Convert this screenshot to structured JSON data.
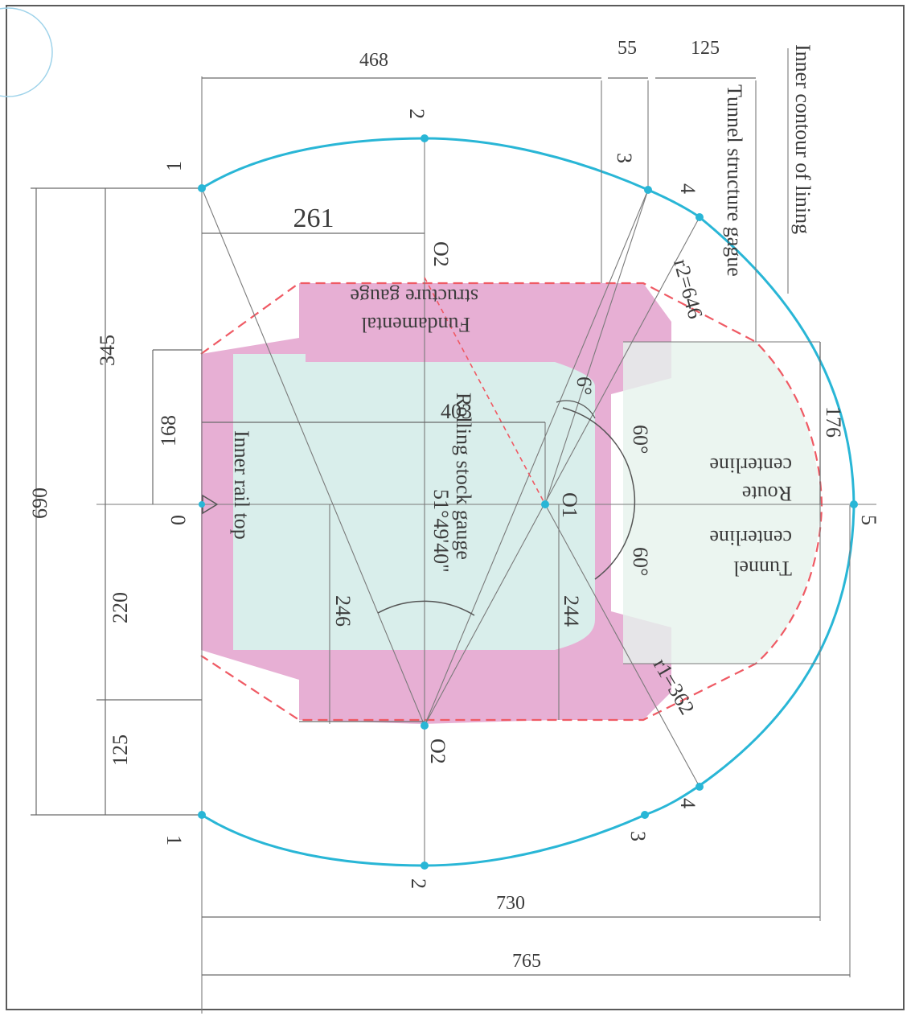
{
  "labels": {
    "inner_contour": "Inner contour of lining",
    "tunnel_structure_gauge": "Tunnel structure gague",
    "fundamental_line1": "Fundamental",
    "fundamental_line2": "structure gauge",
    "rolling_stock_line1": "Rolling stock gauge",
    "rolling_stock_line2": "51°49'40\"",
    "route_line1": "Route",
    "route_line2": "centerline",
    "tunnel_line1": "Tunnel",
    "tunnel_line2": "centerline",
    "inner_rail_top": "Inner rail top"
  },
  "dimensions": {
    "d468": "468",
    "d55": "55",
    "d125": "125",
    "d261": "261",
    "d345": "345",
    "d168": "168",
    "d690": "690",
    "d220": "220",
    "d125b": "125",
    "d403": "403",
    "d246": "246",
    "d244": "244",
    "d176": "176",
    "d730": "730",
    "d765": "765",
    "r1": "r1=362",
    "r2": "r2=646",
    "a6": "6°",
    "a60a": "60°",
    "a60b": "60°"
  },
  "points": {
    "p1_top": "1",
    "p2_top": "2",
    "p3_top": "3",
    "p4_top": "4",
    "p5": "5",
    "p1_bot": "1",
    "p2_bot": "2",
    "p3_bot": "3",
    "p4_bot": "4",
    "p0": "0",
    "o1": "O1",
    "o2_top": "O2",
    "o2_bot": "O2"
  },
  "colors": {
    "lining": "#29b6d6",
    "fundamental_gauge": "#ef5a64",
    "structure_fill": "#e4a6cf",
    "rolling_fill": "#d8f1ec"
  }
}
